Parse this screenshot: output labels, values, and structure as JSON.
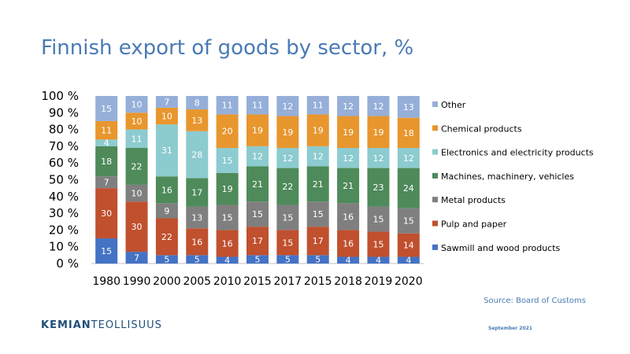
{
  "header": {
    "title": "Finnish export of goods by sector, %"
  },
  "footer": {
    "source": "Source: Board of Customs",
    "logo_part1": "KEMIAN",
    "logo_part2": "TEOLLISUUS",
    "date": "September 2021"
  },
  "chart_data": {
    "type": "bar",
    "stacked": true,
    "title": "Finnish export of goods by sector, %",
    "xlabel": "",
    "ylabel": "",
    "ylim": [
      0,
      100
    ],
    "y_ticks": [
      "0 %",
      "10 %",
      "20 %",
      "30 %",
      "40 %",
      "50 %",
      "60 %",
      "70 %",
      "80 %",
      "90 %",
      "100 %"
    ],
    "categories": [
      "1980",
      "1990",
      "2000",
      "2005",
      "2010",
      "2015",
      "2017",
      "2015",
      "2018",
      "2019",
      "2020"
    ],
    "legend_position": "right",
    "grid": false,
    "series": [
      {
        "name": "Sawmill and wood products",
        "color": "#4472c4",
        "values": [
          15,
          7,
          5,
          5,
          4,
          5,
          5,
          5,
          4,
          4,
          4
        ]
      },
      {
        "name": "Pulp and paper",
        "color": "#c0502e",
        "values": [
          30,
          30,
          22,
          16,
          16,
          17,
          15,
          17,
          16,
          15,
          14
        ]
      },
      {
        "name": "Metal products",
        "color": "#7f7f7f",
        "values": [
          7,
          10,
          9,
          13,
          15,
          15,
          15,
          15,
          16,
          15,
          15
        ]
      },
      {
        "name": "Machines, machinery, vehicles",
        "color": "#4e8a5a",
        "values": [
          18,
          22,
          16,
          17,
          19,
          21,
          22,
          21,
          21,
          23,
          24
        ]
      },
      {
        "name": "Electronics and electricity products",
        "color": "#8ccbcf",
        "values": [
          4,
          11,
          31,
          28,
          15,
          12,
          12,
          12,
          12,
          12,
          12
        ]
      },
      {
        "name": "Chemical products",
        "color": "#e8962e",
        "values": [
          11,
          10,
          10,
          13,
          20,
          19,
          19,
          19,
          19,
          19,
          18
        ]
      },
      {
        "name": "Other",
        "color": "#96afd9",
        "values": [
          15,
          10,
          7,
          8,
          11,
          11,
          12,
          11,
          12,
          12,
          13
        ]
      }
    ]
  }
}
